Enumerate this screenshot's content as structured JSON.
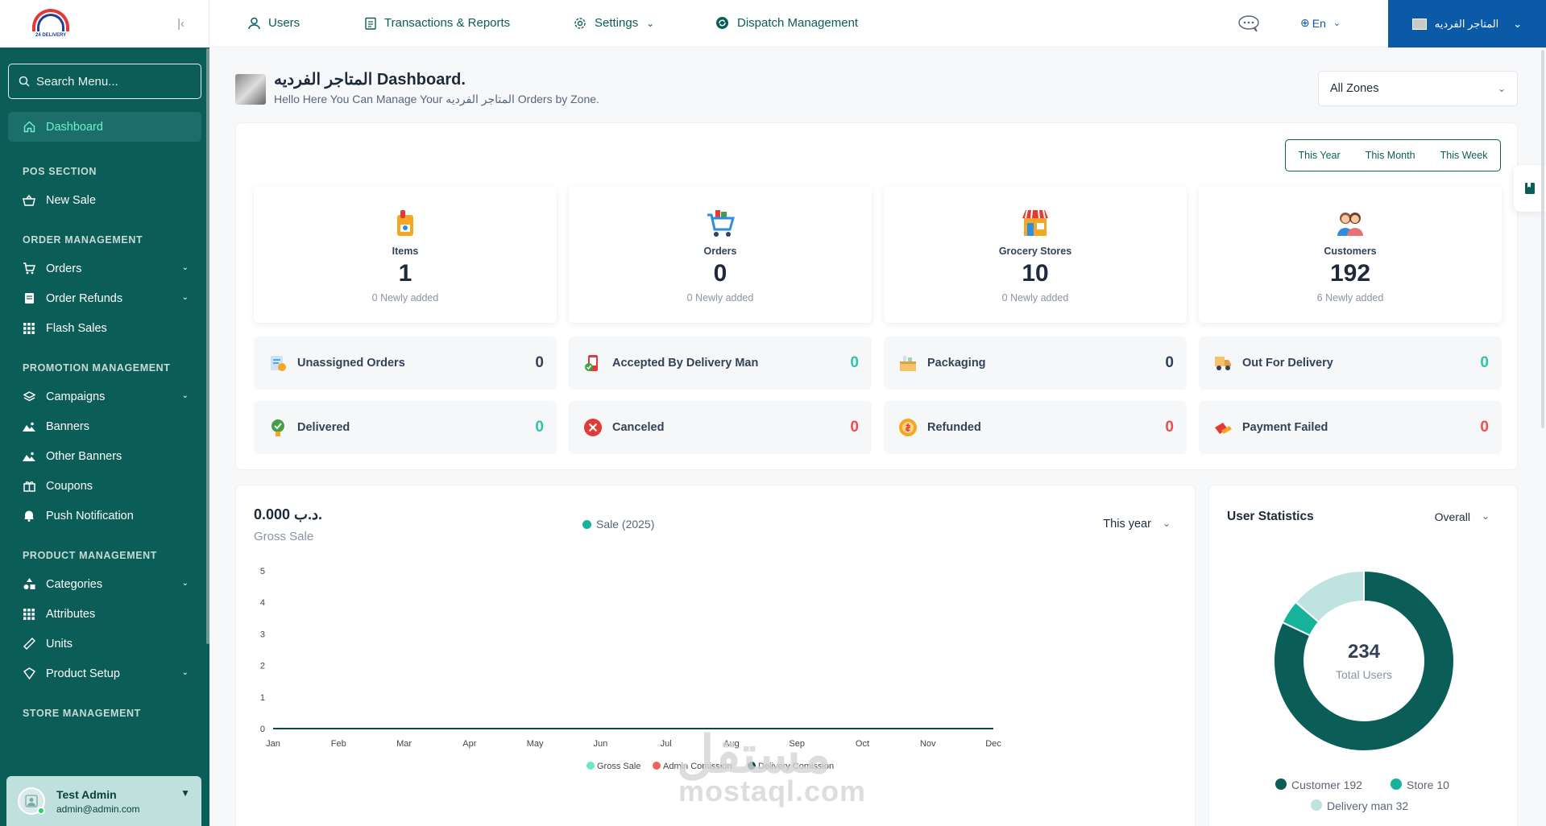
{
  "sidebar": {
    "search_placeholder": "Search Menu...",
    "dashboard": "Dashboard",
    "sections": {
      "pos": "POS SECTION",
      "order": "ORDER MANAGEMENT",
      "promotion": "PROMOTION MANAGEMENT",
      "product": "PRODUCT MANAGEMENT",
      "store": "STORE MANAGEMENT"
    },
    "items": {
      "new_sale": "New Sale",
      "orders": "Orders",
      "order_refunds": "Order Refunds",
      "flash_sales": "Flash Sales",
      "campaigns": "Campaigns",
      "banners": "Banners",
      "other_banners": "Other Banners",
      "coupons": "Coupons",
      "push_notification": "Push Notification",
      "categories": "Categories",
      "attributes": "Attributes",
      "units": "Units",
      "product_setup": "Product Setup"
    },
    "admin": {
      "name": "Test Admin",
      "email": "admin@admin.com"
    },
    "logo_text": "24 DELIVERY"
  },
  "topbar": {
    "users": "Users",
    "transactions": "Transactions & Reports",
    "settings": "Settings",
    "dispatch": "Dispatch Management",
    "language": "En",
    "store_name": "المتاجر الفرديه"
  },
  "header": {
    "title": "المتاجر الفرديه Dashboard.",
    "subtitle": "Hello Here You Can Manage Your المتاجر الفرديه Orders by Zone.",
    "zone": "All Zones"
  },
  "period_tabs": [
    "This Year",
    "This Month",
    "This Week"
  ],
  "stats": [
    {
      "label": "Items",
      "value": "1",
      "sub": "0 Newly added"
    },
    {
      "label": "Orders",
      "value": "0",
      "sub": "0 Newly added"
    },
    {
      "label": "Grocery Stores",
      "value": "10",
      "sub": "0 Newly added"
    },
    {
      "label": "Customers",
      "value": "192",
      "sub": "6 Newly added"
    }
  ],
  "statuses": [
    {
      "label": "Unassigned Orders",
      "value": "0"
    },
    {
      "label": "Accepted By Delivery Man",
      "value": "0"
    },
    {
      "label": "Packaging",
      "value": "0"
    },
    {
      "label": "Out For Delivery",
      "value": "0"
    },
    {
      "label": "Delivered",
      "value": "0"
    },
    {
      "label": "Canceled",
      "value": "0"
    },
    {
      "label": "Refunded",
      "value": "0"
    },
    {
      "label": "Payment Failed",
      "value": "0"
    }
  ],
  "sales": {
    "amount": "0.000 د.ب.",
    "label": "Gross Sale",
    "legend": "Sale (2025)",
    "filter": "This year",
    "bottom_legend": [
      "Gross Sale",
      "Admin Comission",
      "Delivery Comission"
    ]
  },
  "user_stats": {
    "title": "User Statistics",
    "filter": "Overall",
    "total": "234",
    "total_label": "Total Users",
    "legend": [
      "Customer 192",
      "Store 10",
      "Delivery man 32"
    ]
  },
  "watermark": {
    "ar": "مستقل",
    "en": "mostaql.com"
  },
  "chart_data": [
    {
      "type": "line",
      "x": [
        "Jan",
        "Feb",
        "Mar",
        "Apr",
        "May",
        "Jun",
        "Jul",
        "Aug",
        "Sep",
        "Oct",
        "Nov",
        "Dec"
      ],
      "series": [
        {
          "name": "Gross Sale",
          "values": [
            0,
            0,
            0,
            0,
            0,
            0,
            0,
            0,
            0,
            0,
            0,
            0
          ],
          "color": "#0b5d58"
        },
        {
          "name": "Admin Comission",
          "values": [
            0,
            0,
            0,
            0,
            0,
            0,
            0,
            0,
            0,
            0,
            0,
            0
          ],
          "color": "#ef6161"
        },
        {
          "name": "Delivery Comission",
          "values": [
            0,
            0,
            0,
            0,
            0,
            0,
            0,
            0,
            0,
            0,
            0,
            0
          ],
          "color": "#0b4a46"
        }
      ],
      "yticks": [
        0,
        1,
        2,
        3,
        4,
        5
      ],
      "ylim": [
        0,
        5
      ],
      "grid": false
    },
    {
      "type": "pie",
      "categories": [
        "Customer",
        "Store",
        "Delivery man"
      ],
      "values": [
        192,
        10,
        32
      ],
      "colors": [
        "#0b5d58",
        "#17b29b",
        "#bfe3e0"
      ]
    }
  ]
}
